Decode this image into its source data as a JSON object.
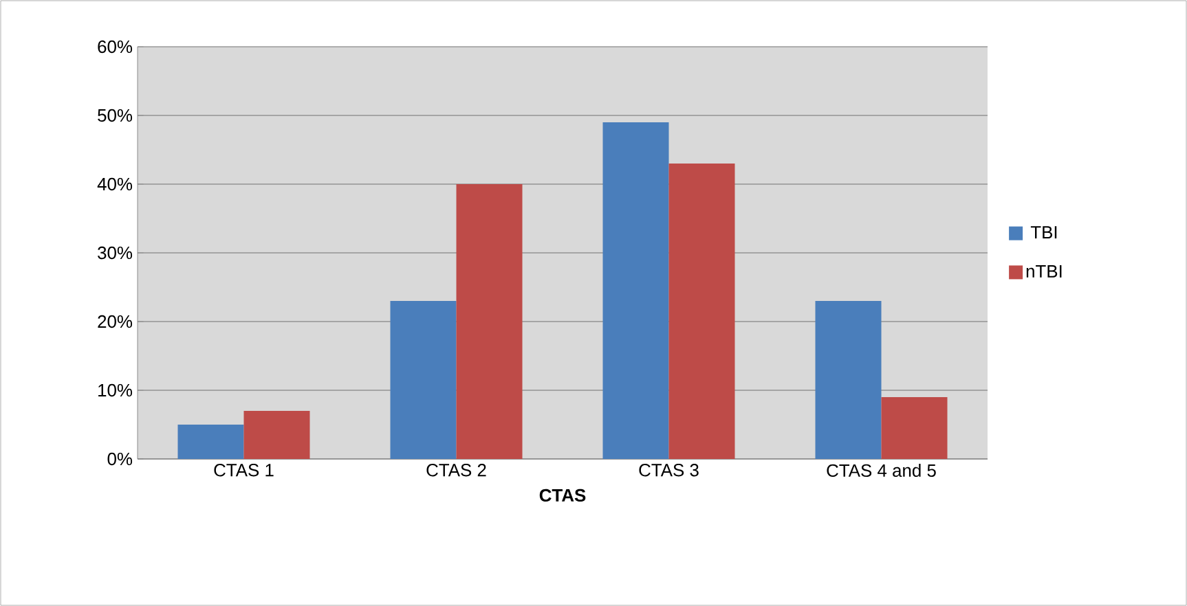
{
  "chart_data": {
    "type": "bar",
    "xlabel": "CTAS",
    "categories": [
      "CTAS 1",
      "CTAS 2",
      "CTAS 3",
      "CTAS 4 and 5"
    ],
    "series": [
      {
        "name": "TBI",
        "color": "#4a7ebb",
        "values": [
          5,
          23,
          49,
          23
        ]
      },
      {
        "name": "nTBI",
        "color": "#be4b48",
        "values": [
          7,
          40,
          43,
          9
        ]
      }
    ],
    "ylim": [
      0,
      60
    ],
    "yticks": [
      {
        "value": 0,
        "label": "0%"
      },
      {
        "value": 10,
        "label": "10%"
      },
      {
        "value": 20,
        "label": "20%"
      },
      {
        "value": 30,
        "label": "30%"
      },
      {
        "value": 40,
        "label": "40%"
      },
      {
        "value": 50,
        "label": "50%"
      },
      {
        "value": 60,
        "label": "60%"
      }
    ],
    "grid": "y",
    "legend": "right"
  }
}
